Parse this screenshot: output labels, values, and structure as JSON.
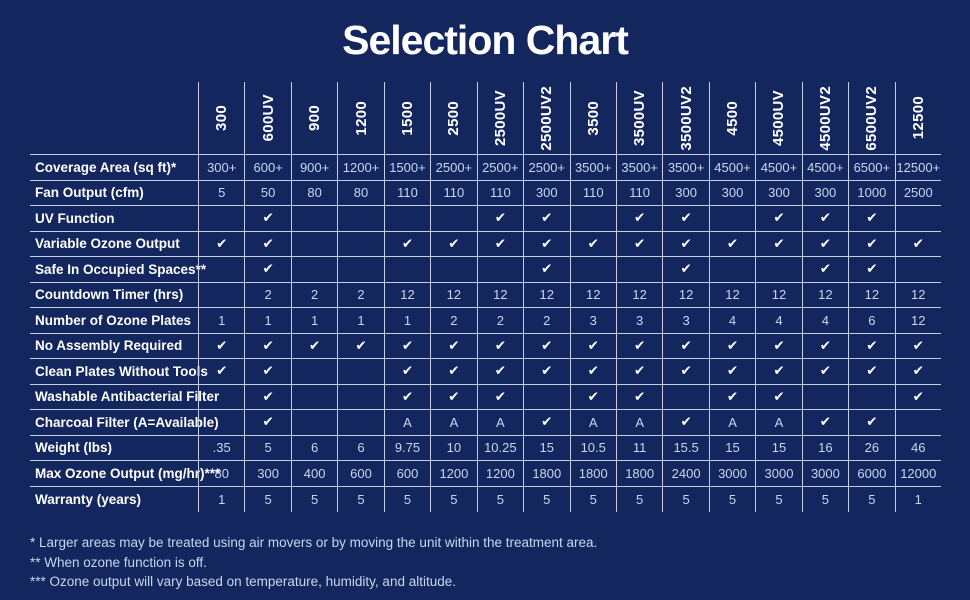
{
  "title": "Selection Chart",
  "colors": {
    "background": "#13265E",
    "grid_lines": "#C3CFE4",
    "heading_text": "#FFFFFF",
    "value_text": "#C9D6EF"
  },
  "chart_data": {
    "type": "table",
    "title": "Selection Chart",
    "columns": [
      "300",
      "600UV",
      "900",
      "1200",
      "1500",
      "2500",
      "2500UV",
      "2500UV2",
      "3500",
      "3500UV",
      "3500UV2",
      "4500",
      "4500UV",
      "4500UV2",
      "6500UV2",
      "12500"
    ],
    "rows": [
      {
        "label": "Coverage Area (sq ft)*",
        "values": [
          "300+",
          "600+",
          "900+",
          "1200+",
          "1500+",
          "2500+",
          "2500+",
          "2500+",
          "3500+",
          "3500+",
          "3500+",
          "4500+",
          "4500+",
          "4500+",
          "6500+",
          "12500+"
        ]
      },
      {
        "label": "Fan Output (cfm)",
        "values": [
          "5",
          "50",
          "80",
          "80",
          "110",
          "110",
          "110",
          "300",
          "110",
          "110",
          "300",
          "300",
          "300",
          "300",
          "1000",
          "2500"
        ]
      },
      {
        "label": "UV Function",
        "values": [
          "",
          "✔",
          "",
          "",
          "",
          "",
          "✔",
          "✔",
          "",
          "✔",
          "✔",
          "",
          "✔",
          "✔",
          "✔",
          ""
        ]
      },
      {
        "label": "Variable Ozone Output",
        "values": [
          "✔",
          "✔",
          "",
          "",
          "✔",
          "✔",
          "✔",
          "✔",
          "✔",
          "✔",
          "✔",
          "✔",
          "✔",
          "✔",
          "✔",
          "✔"
        ]
      },
      {
        "label": "Safe In Occupied Spaces**",
        "values": [
          "",
          "✔",
          "",
          "",
          "",
          "",
          "",
          "✔",
          "",
          "",
          "✔",
          "",
          "",
          "✔",
          "✔",
          ""
        ]
      },
      {
        "label": "Countdown Timer (hrs)",
        "values": [
          "",
          "2",
          "2",
          "2",
          "12",
          "12",
          "12",
          "12",
          "12",
          "12",
          "12",
          "12",
          "12",
          "12",
          "12",
          "12"
        ]
      },
      {
        "label": "Number of Ozone Plates",
        "values": [
          "1",
          "1",
          "1",
          "1",
          "1",
          "2",
          "2",
          "2",
          "3",
          "3",
          "3",
          "4",
          "4",
          "4",
          "6",
          "12"
        ]
      },
      {
        "label": "No Assembly Required",
        "values": [
          "✔",
          "✔",
          "✔",
          "✔",
          "✔",
          "✔",
          "✔",
          "✔",
          "✔",
          "✔",
          "✔",
          "✔",
          "✔",
          "✔",
          "✔",
          "✔"
        ]
      },
      {
        "label": "Clean Plates Without Tools",
        "values": [
          "✔",
          "✔",
          "",
          "",
          "✔",
          "✔",
          "✔",
          "✔",
          "✔",
          "✔",
          "✔",
          "✔",
          "✔",
          "✔",
          "✔",
          "✔"
        ]
      },
      {
        "label": "Washable Antibacterial Filter",
        "values": [
          "",
          "✔",
          "",
          "",
          "✔",
          "✔",
          "✔",
          "",
          "✔",
          "✔",
          "",
          "✔",
          "✔",
          "",
          "",
          "✔"
        ]
      },
      {
        "label": "Charcoal Filter  (A=Available)",
        "values": [
          "",
          "✔",
          "",
          "",
          "A",
          "A",
          "A",
          "✔",
          "A",
          "A",
          "✔",
          "A",
          "A",
          "✔",
          "✔",
          ""
        ]
      },
      {
        "label": "Weight (lbs)",
        "values": [
          ".35",
          "5",
          "6",
          "6",
          "9.75",
          "10",
          "10.25",
          "15",
          "10.5",
          "11",
          "15.5",
          "15",
          "15",
          "16",
          "26",
          "46"
        ]
      },
      {
        "label": "Max Ozone Output (mg/hr)***",
        "values": [
          "80",
          "300",
          "400",
          "600",
          "600",
          "1200",
          "1200",
          "1800",
          "1800",
          "1800",
          "2400",
          "3000",
          "3000",
          "3000",
          "6000",
          "12000"
        ]
      },
      {
        "label": "Warranty (years)",
        "values": [
          "1",
          "5",
          "5",
          "5",
          "5",
          "5",
          "5",
          "5",
          "5",
          "5",
          "5",
          "5",
          "5",
          "5",
          "5",
          "1"
        ]
      }
    ],
    "footnotes": [
      "* Larger areas may be treated using air movers or by moving the unit within the treatment area.",
      "** When ozone function is off.",
      "*** Ozone output will vary based on temperature, humidity, and altitude."
    ],
    "check_symbol": "✔",
    "available_symbol": "A",
    "legend_note": "A=Available"
  }
}
